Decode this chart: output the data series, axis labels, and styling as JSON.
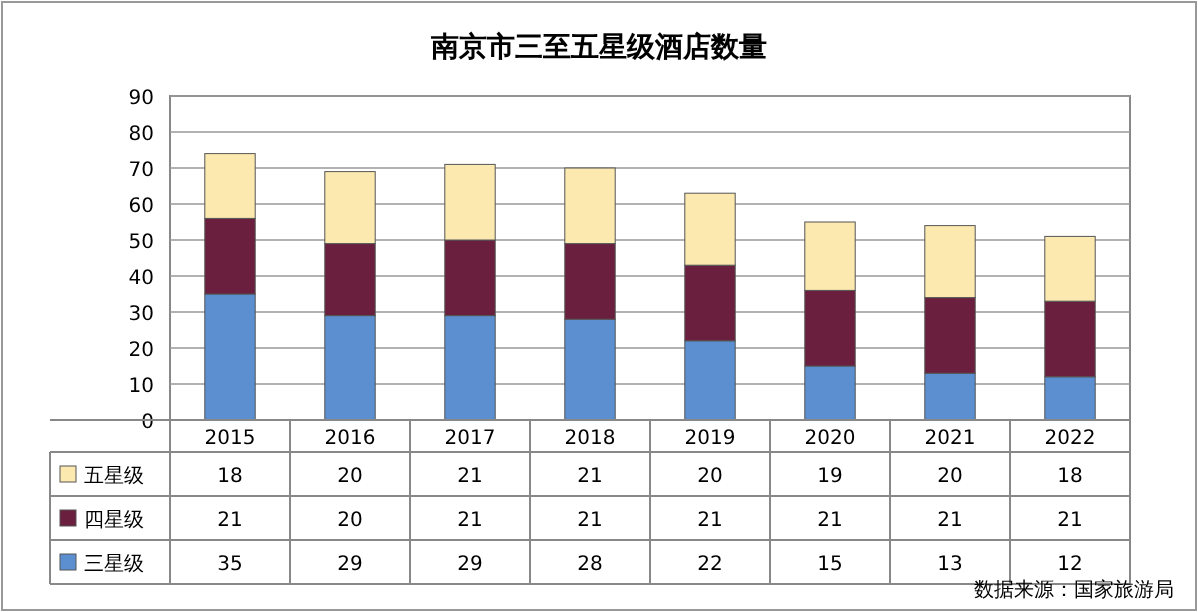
{
  "chart_data": {
    "type": "bar",
    "title": "南京市三至五星级酒店数量",
    "stacked": true,
    "categories": [
      "2015",
      "2016",
      "2017",
      "2018",
      "2019",
      "2020",
      "2021",
      "2022"
    ],
    "series": [
      {
        "name": "三星级",
        "color": "#5b8fd0",
        "values": [
          35,
          29,
          29,
          28,
          22,
          15,
          13,
          12
        ]
      },
      {
        "name": "四星级",
        "color": "#6b1f3f",
        "values": [
          21,
          20,
          21,
          21,
          21,
          21,
          21,
          21
        ]
      },
      {
        "name": "五星级",
        "color": "#fbe9b0",
        "values": [
          18,
          20,
          21,
          21,
          20,
          19,
          20,
          18
        ]
      }
    ],
    "ylim": [
      0,
      90
    ],
    "yticks": [
      0,
      10,
      20,
      30,
      40,
      50,
      60,
      70,
      80,
      90
    ],
    "grid": "y",
    "data_labels": true,
    "legend": "bottom",
    "annotations": [
      "数据来源：国家旅游局"
    ]
  }
}
